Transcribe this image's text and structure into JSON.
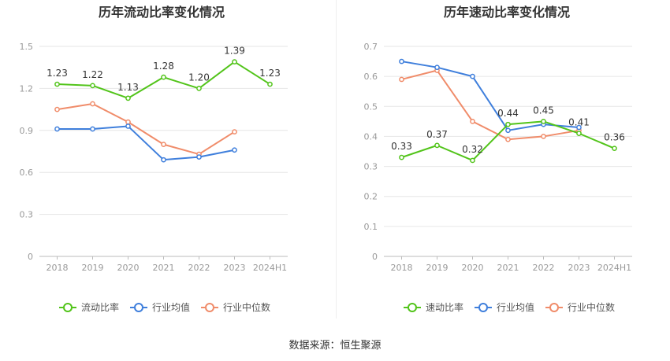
{
  "source": "数据来源：恒生聚源",
  "colors": {
    "primary": "#52c41a",
    "industry_avg": "#3f7fdc",
    "industry_median": "#f08c6a",
    "grid": "#e6e6e6",
    "axis": "#999999",
    "label": "#333333"
  },
  "chart_data": [
    {
      "type": "line",
      "title": "历年流动比率变化情况",
      "categories": [
        "2018",
        "2019",
        "2020",
        "2021",
        "2022",
        "2023",
        "2024H1"
      ],
      "ylim": [
        0,
        1.5
      ],
      "yticks": [
        "0",
        "0.3",
        "0.6",
        "0.9",
        "1.2",
        "1.5"
      ],
      "grid": true,
      "legend_position": "bottom",
      "series": [
        {
          "name": "流动比率",
          "values": [
            1.23,
            1.22,
            1.13,
            1.28,
            1.2,
            1.39,
            1.23
          ],
          "labels": [
            "1.23",
            "1.22",
            "1.13",
            "1.28",
            "1.20",
            "1.39",
            "1.23"
          ]
        },
        {
          "name": "行业均值",
          "values": [
            0.91,
            0.91,
            0.93,
            0.69,
            0.71,
            0.76,
            null
          ]
        },
        {
          "name": "行业中位数",
          "values": [
            1.05,
            1.09,
            0.96,
            0.8,
            0.73,
            0.89,
            null
          ]
        }
      ]
    },
    {
      "type": "line",
      "title": "历年速动比率变化情况",
      "categories": [
        "2018",
        "2019",
        "2020",
        "2021",
        "2022",
        "2023",
        "2024H1"
      ],
      "ylim": [
        0,
        0.7
      ],
      "yticks": [
        "0",
        "0.1",
        "0.2",
        "0.3",
        "0.4",
        "0.5",
        "0.6",
        "0.7"
      ],
      "grid": true,
      "legend_position": "bottom",
      "series": [
        {
          "name": "速动比率",
          "values": [
            0.33,
            0.37,
            0.32,
            0.44,
            0.45,
            0.41,
            0.36
          ],
          "labels": [
            "0.33",
            "0.37",
            "0.32",
            "0.44",
            "0.45",
            "0.41",
            "0.36"
          ]
        },
        {
          "name": "行业均值",
          "values": [
            0.65,
            0.63,
            0.6,
            0.42,
            0.44,
            0.43,
            null
          ]
        },
        {
          "name": "行业中位数",
          "values": [
            0.59,
            0.62,
            0.45,
            0.39,
            0.4,
            0.42,
            null
          ]
        }
      ]
    }
  ]
}
